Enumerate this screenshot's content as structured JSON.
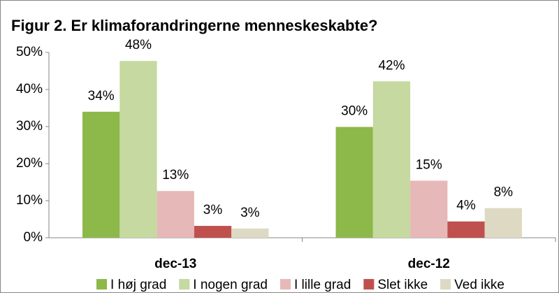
{
  "chart_data": {
    "type": "bar",
    "title": "Figur 2. Er klimaforandringerne menneskeskabte?",
    "categories": [
      "dec-13",
      "dec-12"
    ],
    "series": [
      {
        "name": "I høj grad",
        "color": "#8db84a",
        "values": [
          34,
          29.9
        ],
        "value_labels": [
          "34%",
          "30%"
        ]
      },
      {
        "name": "I nogen grad",
        "color": "#c5d9a0",
        "values": [
          47.7,
          42.2
        ],
        "value_labels": [
          "48%",
          "42%"
        ]
      },
      {
        "name": "I lille grad",
        "color": "#e6b8b7",
        "values": [
          12.6,
          15.4
        ],
        "value_labels": [
          "13%",
          "15%"
        ]
      },
      {
        "name": "Slet ikke",
        "color": "#c0504d",
        "values": [
          3.2,
          4.4
        ],
        "value_labels": [
          "3%",
          "4%"
        ]
      },
      {
        "name": "Ved ikke",
        "color": "#ddd9c3",
        "values": [
          2.5,
          8
        ],
        "value_labels": [
          "3%",
          "8%"
        ]
      }
    ],
    "ylim": [
      0,
      50
    ],
    "yticks": [
      {
        "value": 0,
        "label": "0%"
      },
      {
        "value": 10,
        "label": "10%"
      },
      {
        "value": 20,
        "label": "20%"
      },
      {
        "value": 30,
        "label": "30%"
      },
      {
        "value": 40,
        "label": "40%"
      },
      {
        "value": 50,
        "label": "50%"
      }
    ],
    "grid": false,
    "legend": "bottom"
  }
}
